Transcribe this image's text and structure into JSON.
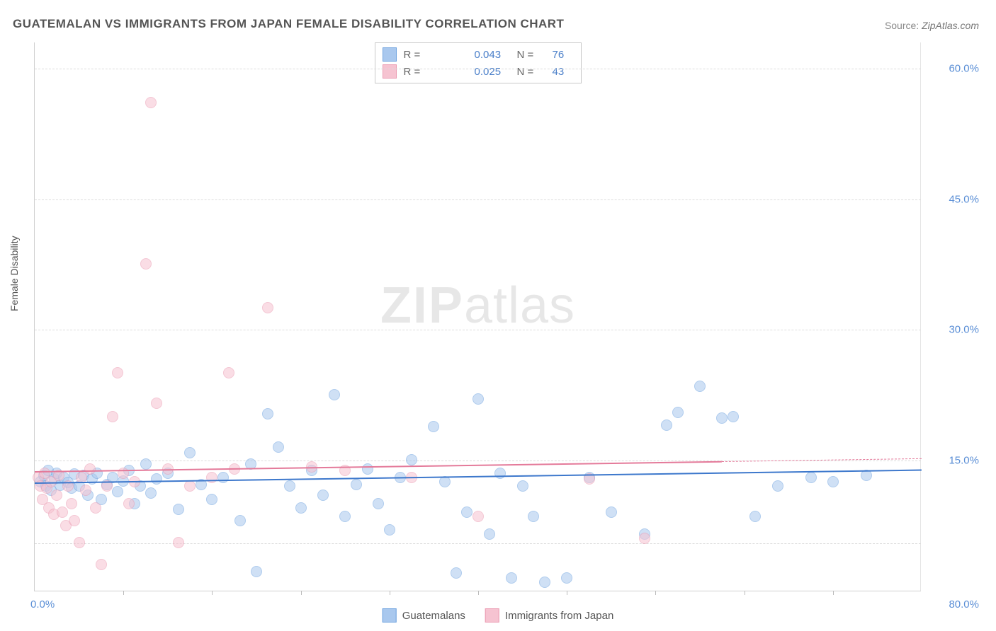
{
  "title": "GUATEMALAN VS IMMIGRANTS FROM JAPAN FEMALE DISABILITY CORRELATION CHART",
  "source_label": "Source:",
  "source_value": "ZipAtlas.com",
  "ylabel": "Female Disability",
  "watermark_zip": "ZIP",
  "watermark_rest": "atlas",
  "chart": {
    "type": "scatter",
    "background_color": "#ffffff",
    "grid_color": "#dcdcdc",
    "axis_color": "#d0d0d0",
    "tick_label_color": "#5b8fd6",
    "label_color": "#555555",
    "xlim": [
      0,
      80
    ],
    "ylim": [
      0,
      63
    ],
    "x_start_label": "0.0%",
    "x_end_label": "80.0%",
    "yticks": [
      {
        "v": 15,
        "label": "15.0%"
      },
      {
        "v": 30,
        "label": "30.0%"
      },
      {
        "v": 45,
        "label": "45.0%"
      },
      {
        "v": 60,
        "label": "60.0%"
      }
    ],
    "extra_gridline_y": 5.5,
    "xtick_step": 8,
    "xtick_count": 10,
    "marker_radius": 8,
    "marker_opacity": 0.55,
    "series": [
      {
        "name": "Guatemalans",
        "color_fill": "#a9c8ee",
        "color_stroke": "#6fa3df",
        "r_value": "0.043",
        "n_value": "76",
        "trend": {
          "y_start": 12.5,
          "y_end": 14.0,
          "color": "#3d78cc",
          "width": 2
        },
        "points": [
          [
            0.5,
            12.5
          ],
          [
            0.8,
            13.2
          ],
          [
            1.0,
            12.0
          ],
          [
            1.2,
            13.8
          ],
          [
            1.5,
            11.5
          ],
          [
            1.8,
            12.8
          ],
          [
            2.0,
            13.5
          ],
          [
            2.3,
            12.1
          ],
          [
            2.6,
            13.0
          ],
          [
            3.0,
            12.4
          ],
          [
            3.3,
            11.8
          ],
          [
            3.6,
            13.4
          ],
          [
            4.0,
            12.0
          ],
          [
            4.4,
            13.2
          ],
          [
            4.8,
            11.0
          ],
          [
            5.2,
            12.8
          ],
          [
            5.6,
            13.5
          ],
          [
            6.0,
            10.5
          ],
          [
            6.5,
            12.2
          ],
          [
            7.0,
            13.0
          ],
          [
            7.5,
            11.4
          ],
          [
            8.0,
            12.6
          ],
          [
            8.5,
            13.8
          ],
          [
            9.0,
            10.0
          ],
          [
            9.5,
            12.0
          ],
          [
            10.0,
            14.5
          ],
          [
            10.5,
            11.2
          ],
          [
            11.0,
            12.8
          ],
          [
            12.0,
            13.5
          ],
          [
            13.0,
            9.3
          ],
          [
            14.0,
            15.8
          ],
          [
            15.0,
            12.2
          ],
          [
            16.0,
            10.5
          ],
          [
            17.0,
            13.0
          ],
          [
            18.5,
            8.0
          ],
          [
            19.5,
            14.5
          ],
          [
            20.0,
            2.2
          ],
          [
            21.0,
            20.3
          ],
          [
            22.0,
            16.5
          ],
          [
            23.0,
            12.0
          ],
          [
            24.0,
            9.5
          ],
          [
            25.0,
            13.8
          ],
          [
            26.0,
            11.0
          ],
          [
            27.0,
            22.5
          ],
          [
            28.0,
            8.5
          ],
          [
            29.0,
            12.2
          ],
          [
            30.0,
            14.0
          ],
          [
            31.0,
            10.0
          ],
          [
            32.0,
            7.0
          ],
          [
            33.0,
            13.0
          ],
          [
            34.0,
            15.0
          ],
          [
            36.0,
            18.8
          ],
          [
            37.0,
            12.5
          ],
          [
            38.0,
            2.0
          ],
          [
            39.0,
            9.0
          ],
          [
            40.0,
            22.0
          ],
          [
            41.0,
            6.5
          ],
          [
            42.0,
            13.5
          ],
          [
            43.0,
            1.5
          ],
          [
            44.0,
            12.0
          ],
          [
            45.0,
            8.5
          ],
          [
            46.0,
            1.0
          ],
          [
            48.0,
            1.5
          ],
          [
            50.0,
            13.0
          ],
          [
            52.0,
            9.0
          ],
          [
            55.0,
            6.5
          ],
          [
            57.0,
            19.0
          ],
          [
            58.0,
            20.5
          ],
          [
            60.0,
            23.5
          ],
          [
            62.0,
            19.8
          ],
          [
            63.0,
            20.0
          ],
          [
            65.0,
            8.5
          ],
          [
            67.0,
            12.0
          ],
          [
            70.0,
            13.0
          ],
          [
            72.0,
            12.5
          ],
          [
            75.0,
            13.2
          ]
        ]
      },
      {
        "name": "Immigrants from Japan",
        "color_fill": "#f6c3d1",
        "color_stroke": "#eb9ab1",
        "r_value": "0.025",
        "n_value": "43",
        "trend": {
          "y_start": 13.8,
          "y_end": 15.3,
          "x_solid_end": 62,
          "color": "#e47a9a",
          "width": 1.6
        },
        "points": [
          [
            0.3,
            13.0
          ],
          [
            0.5,
            12.0
          ],
          [
            0.7,
            10.5
          ],
          [
            0.9,
            13.5
          ],
          [
            1.1,
            11.8
          ],
          [
            1.3,
            9.5
          ],
          [
            1.5,
            12.5
          ],
          [
            1.7,
            8.8
          ],
          [
            2.0,
            11.0
          ],
          [
            2.2,
            13.2
          ],
          [
            2.5,
            9.0
          ],
          [
            2.8,
            7.5
          ],
          [
            3.0,
            12.0
          ],
          [
            3.3,
            10.0
          ],
          [
            3.6,
            8.0
          ],
          [
            4.0,
            5.5
          ],
          [
            4.2,
            13.0
          ],
          [
            4.6,
            11.5
          ],
          [
            5.0,
            14.0
          ],
          [
            5.5,
            9.5
          ],
          [
            6.0,
            3.0
          ],
          [
            6.5,
            12.0
          ],
          [
            7.0,
            20.0
          ],
          [
            7.5,
            25.0
          ],
          [
            8.0,
            13.5
          ],
          [
            8.5,
            10.0
          ],
          [
            9.0,
            12.5
          ],
          [
            10.0,
            37.5
          ],
          [
            10.5,
            56.0
          ],
          [
            11.0,
            21.5
          ],
          [
            12.0,
            14.0
          ],
          [
            13.0,
            5.5
          ],
          [
            14.0,
            12.0
          ],
          [
            16.0,
            13.0
          ],
          [
            17.5,
            25.0
          ],
          [
            18.0,
            14.0
          ],
          [
            21.0,
            32.5
          ],
          [
            25.0,
            14.2
          ],
          [
            28.0,
            13.8
          ],
          [
            34.0,
            13.0
          ],
          [
            40.0,
            8.5
          ],
          [
            50.0,
            12.8
          ],
          [
            55.0,
            6.0
          ]
        ]
      }
    ]
  },
  "legend_bottom": [
    {
      "label": "Guatemalans",
      "fill": "#a9c8ee",
      "stroke": "#6fa3df"
    },
    {
      "label": "Immigrants from Japan",
      "fill": "#f6c3d1",
      "stroke": "#eb9ab1"
    }
  ]
}
